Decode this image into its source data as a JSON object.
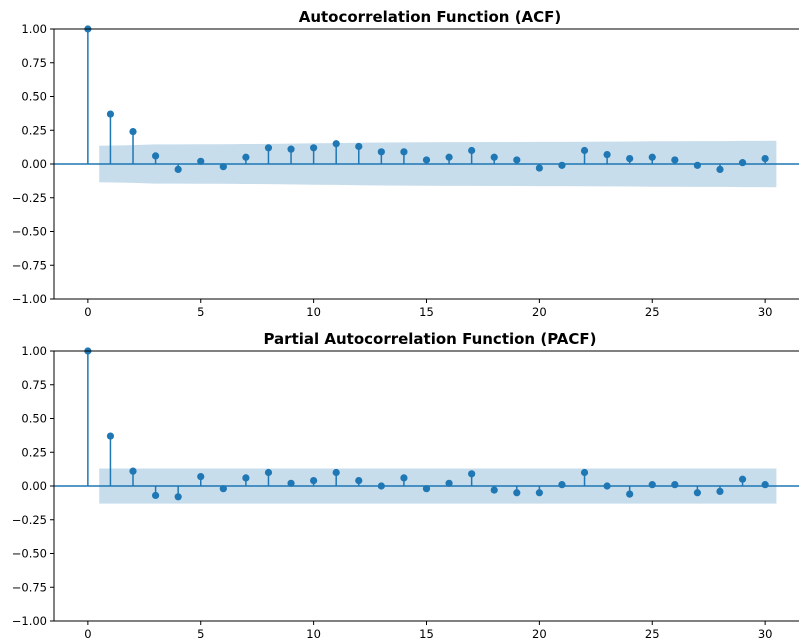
{
  "chart_data": [
    {
      "type": "stem",
      "title": "Autocorrelation Function (ACF)",
      "xlabel": "",
      "ylabel": "",
      "xlim": [
        -1.5,
        31.5
      ],
      "ylim": [
        -1.0,
        1.0
      ],
      "xticks": [
        0,
        5,
        10,
        15,
        20,
        25,
        30
      ],
      "yticks": [
        -1.0,
        -0.75,
        -0.5,
        -0.25,
        0.0,
        0.25,
        0.5,
        0.75,
        1.0
      ],
      "ytick_labels": [
        "−1.00",
        "−0.75",
        "−0.50",
        "−0.25",
        "0.00",
        "0.25",
        "0.50",
        "0.75",
        "1.00"
      ],
      "grid": false,
      "lags": [
        0,
        1,
        2,
        3,
        4,
        5,
        6,
        7,
        8,
        9,
        10,
        11,
        12,
        13,
        14,
        15,
        16,
        17,
        18,
        19,
        20,
        21,
        22,
        23,
        24,
        25,
        26,
        27,
        28,
        29,
        30
      ],
      "values": [
        1.0,
        0.37,
        0.24,
        0.06,
        -0.04,
        0.02,
        -0.02,
        0.05,
        0.12,
        0.11,
        0.12,
        0.15,
        0.13,
        0.09,
        0.09,
        0.03,
        0.05,
        0.1,
        0.05,
        0.03,
        -0.03,
        -0.01,
        0.1,
        0.07,
        0.04,
        0.05,
        0.03,
        -0.01,
        -0.04,
        0.01,
        0.04
      ],
      "confint_upper": [
        0.12,
        0.135,
        0.14,
        0.145,
        0.145,
        0.146,
        0.147,
        0.148,
        0.149,
        0.151,
        0.153,
        0.155,
        0.157,
        0.159,
        0.16,
        0.161,
        0.162,
        0.162,
        0.163,
        0.163,
        0.164,
        0.164,
        0.165,
        0.166,
        0.167,
        0.168,
        0.169,
        0.17,
        0.17,
        0.171,
        0.172
      ],
      "colors": {
        "stem": "#1f77b4",
        "band": "#1f77b4",
        "zero_line": "#1f77b4"
      }
    },
    {
      "type": "stem",
      "title": "Partial Autocorrelation Function (PACF)",
      "xlabel": "",
      "ylabel": "",
      "xlim": [
        -1.5,
        31.5
      ],
      "ylim": [
        -1.0,
        1.0
      ],
      "xticks": [
        0,
        5,
        10,
        15,
        20,
        25,
        30
      ],
      "yticks": [
        -1.0,
        -0.75,
        -0.5,
        -0.25,
        0.0,
        0.25,
        0.5,
        0.75,
        1.0
      ],
      "ytick_labels": [
        "−1.00",
        "−0.75",
        "−0.50",
        "−0.25",
        "0.00",
        "0.25",
        "0.50",
        "0.75",
        "1.00"
      ],
      "grid": false,
      "lags": [
        0,
        1,
        2,
        3,
        4,
        5,
        6,
        7,
        8,
        9,
        10,
        11,
        12,
        13,
        14,
        15,
        16,
        17,
        18,
        19,
        20,
        21,
        22,
        23,
        24,
        25,
        26,
        27,
        28,
        29,
        30
      ],
      "values": [
        1.0,
        0.37,
        0.11,
        -0.07,
        -0.08,
        0.07,
        -0.02,
        0.06,
        0.1,
        0.02,
        0.04,
        0.1,
        0.04,
        0.0,
        0.06,
        -0.02,
        0.02,
        0.09,
        -0.03,
        -0.05,
        -0.05,
        0.01,
        0.1,
        0.0,
        -0.06,
        0.01,
        0.01,
        -0.05,
        -0.04,
        0.05,
        0.01
      ],
      "confint_upper": [
        0.13,
        0.13,
        0.13,
        0.13,
        0.13,
        0.13,
        0.13,
        0.13,
        0.13,
        0.13,
        0.13,
        0.13,
        0.13,
        0.13,
        0.13,
        0.13,
        0.13,
        0.13,
        0.13,
        0.13,
        0.13,
        0.13,
        0.13,
        0.13,
        0.13,
        0.13,
        0.13,
        0.13,
        0.13,
        0.13,
        0.13
      ],
      "colors": {
        "stem": "#1f77b4",
        "band": "#1f77b4",
        "zero_line": "#1f77b4"
      }
    }
  ]
}
